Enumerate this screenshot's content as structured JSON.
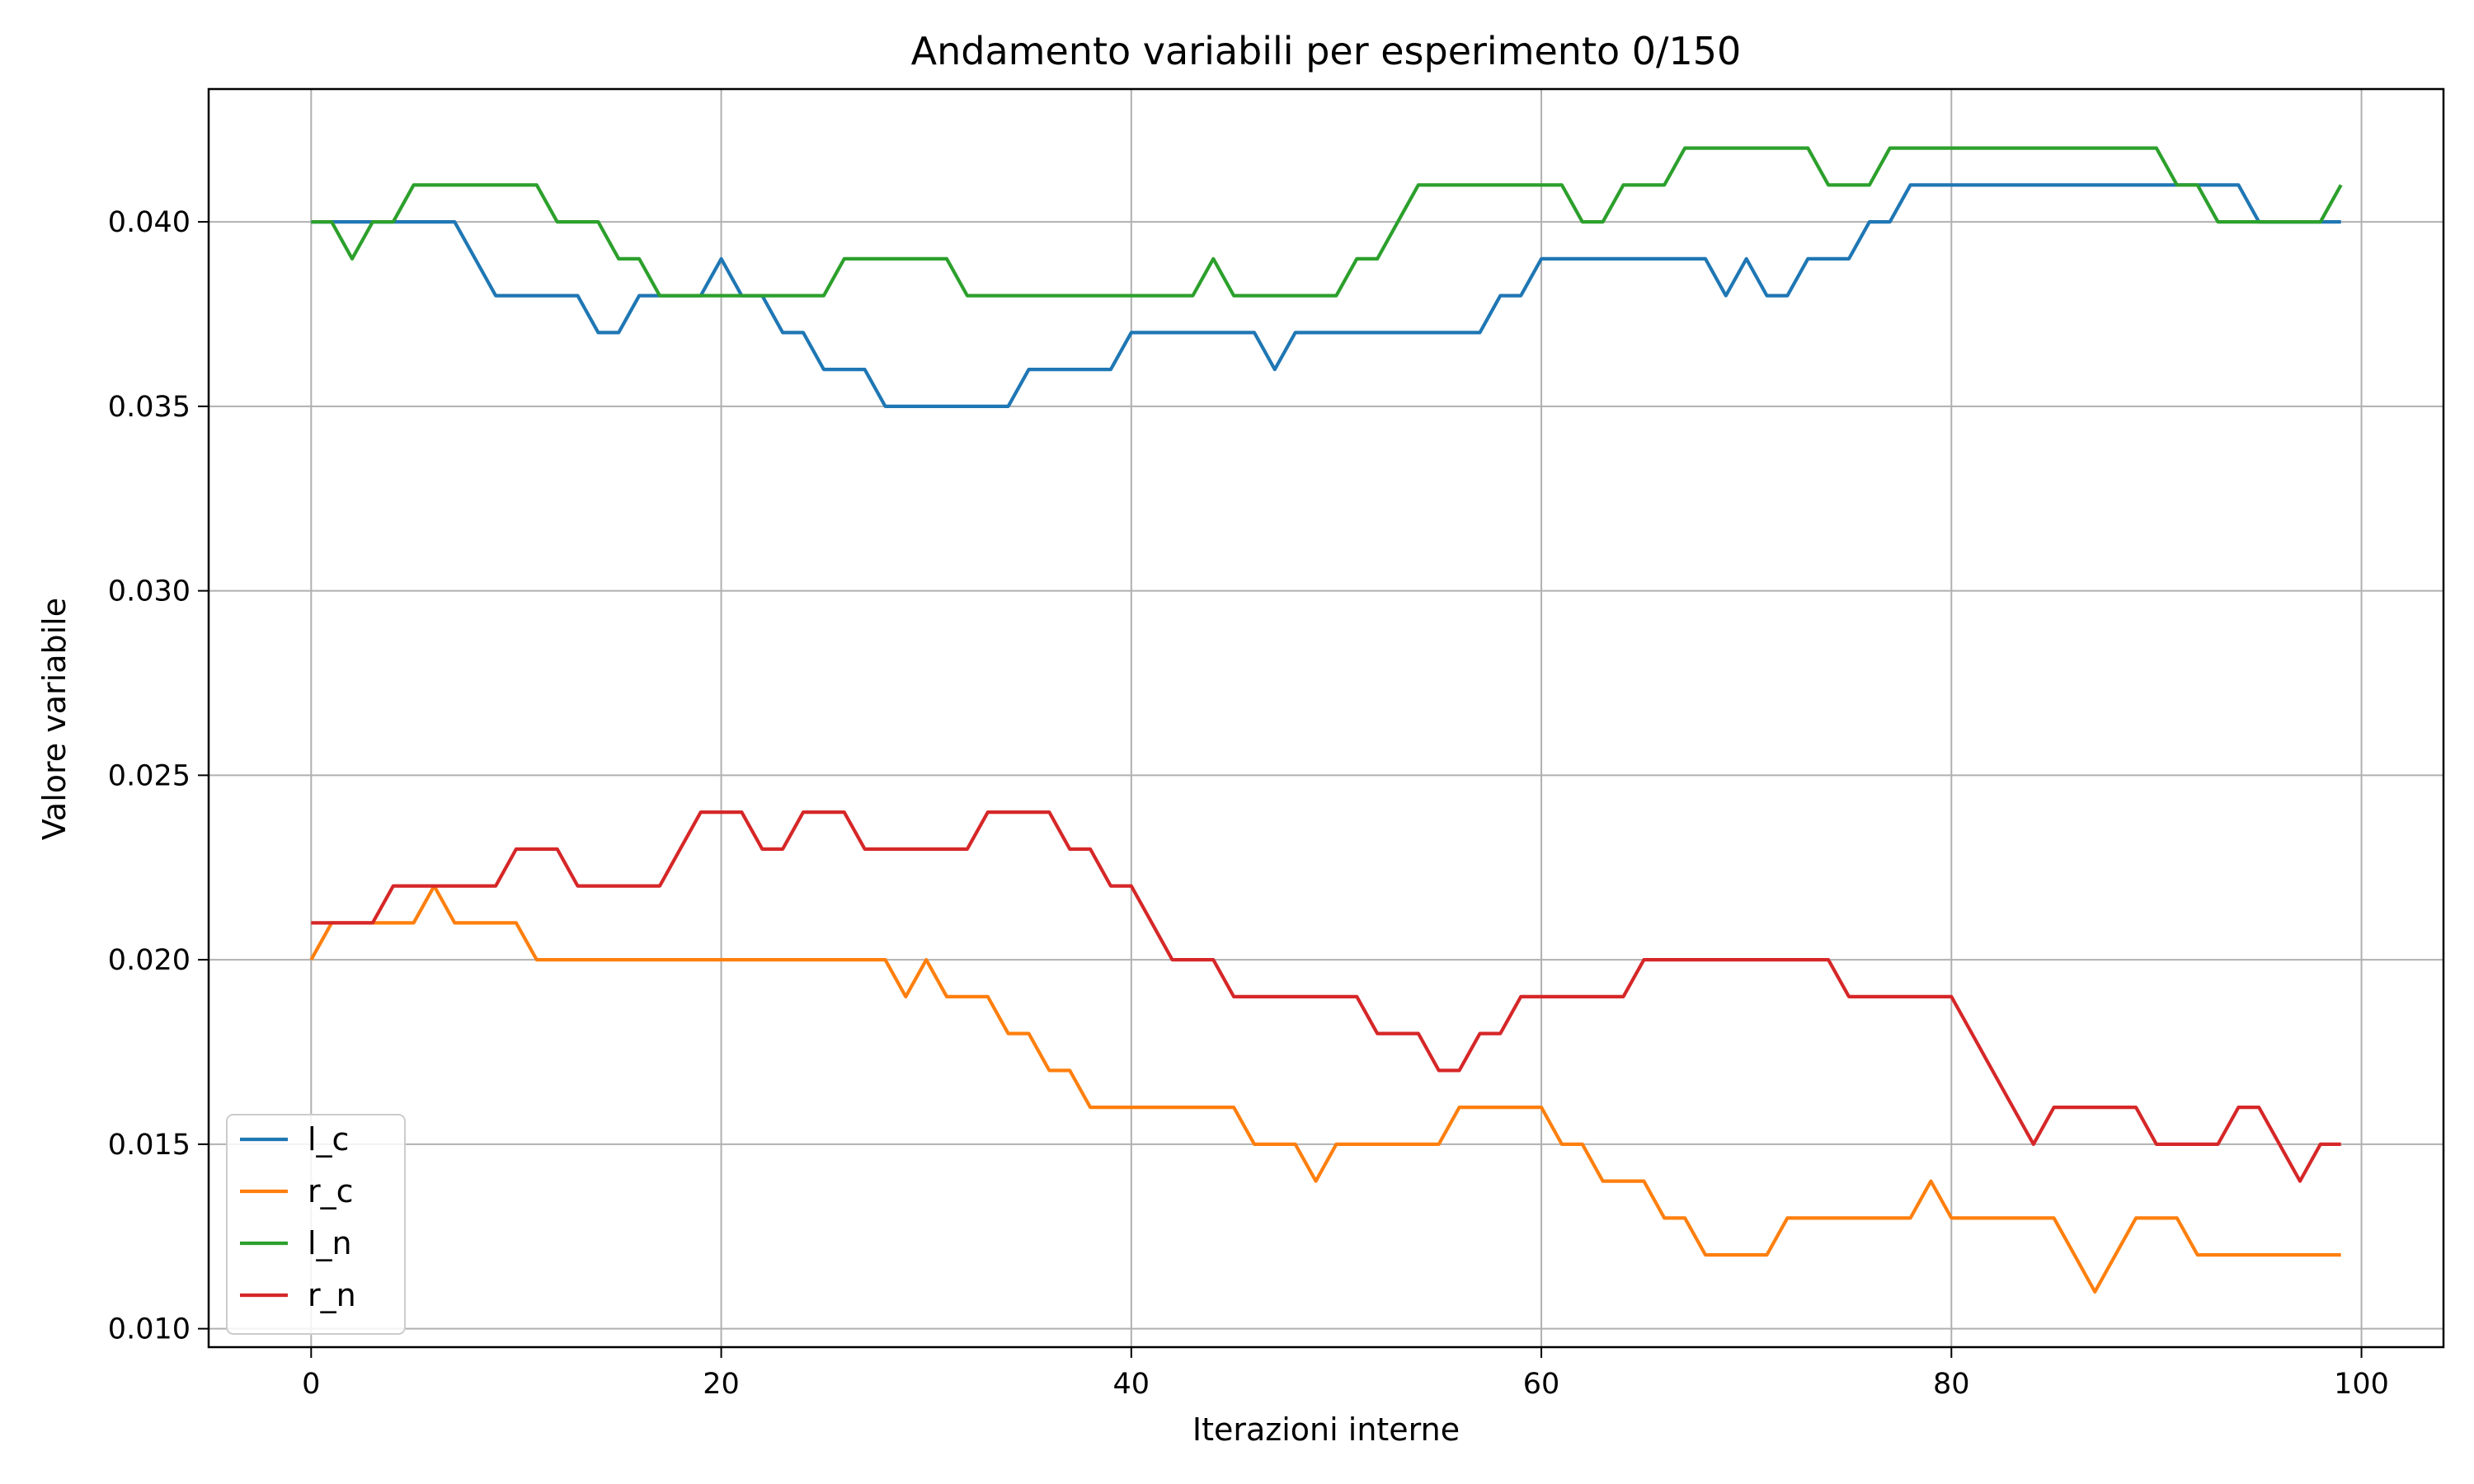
{
  "chart_data": {
    "type": "line",
    "title": "Andamento variabili per esperimento 0/150",
    "xlabel": "Iterazioni interne",
    "ylabel": "Valore variabile",
    "xlim": [
      -5,
      104
    ],
    "ylim": [
      0.0095,
      0.0436
    ],
    "x_ticks": [
      0,
      20,
      40,
      60,
      80,
      100
    ],
    "x_tick_labels": [
      "0",
      "20",
      "40",
      "60",
      "80",
      "100"
    ],
    "y_ticks": [
      0.01,
      0.015,
      0.02,
      0.025,
      0.03,
      0.035,
      0.04
    ],
    "y_tick_labels": [
      "0.010",
      "0.015",
      "0.020",
      "0.025",
      "0.030",
      "0.035",
      "0.040"
    ],
    "grid": true,
    "legend_position": "bottom-left",
    "series": [
      {
        "name": "l_c",
        "color": "#1f77b4",
        "values": [
          0.04,
          0.04,
          0.04,
          0.04,
          0.04,
          0.04,
          0.04,
          0.04,
          0.039,
          0.038,
          0.038,
          0.038,
          0.038,
          0.038,
          0.037,
          0.037,
          0.038,
          0.038,
          0.038,
          0.038,
          0.039,
          0.038,
          0.038,
          0.037,
          0.037,
          0.036,
          0.036,
          0.036,
          0.035,
          0.035,
          0.035,
          0.035,
          0.035,
          0.035,
          0.035,
          0.036,
          0.036,
          0.036,
          0.036,
          0.036,
          0.037,
          0.037,
          0.037,
          0.037,
          0.037,
          0.037,
          0.037,
          0.036,
          0.037,
          0.037,
          0.037,
          0.037,
          0.037,
          0.037,
          0.037,
          0.037,
          0.037,
          0.037,
          0.038,
          0.038,
          0.039,
          0.039,
          0.039,
          0.039,
          0.039,
          0.039,
          0.039,
          0.039,
          0.039,
          0.038,
          0.039,
          0.038,
          0.038,
          0.039,
          0.039,
          0.039,
          0.04,
          0.04,
          0.041,
          0.041,
          0.041,
          0.041,
          0.041,
          0.041,
          0.041,
          0.041,
          0.041,
          0.041,
          0.041,
          0.041,
          0.041,
          0.041,
          0.041,
          0.041,
          0.041,
          0.04,
          0.04,
          0.04,
          0.04,
          0.04
        ]
      },
      {
        "name": "r_c",
        "color": "#ff7f0e",
        "values": [
          0.02,
          0.021,
          0.021,
          0.021,
          0.021,
          0.021,
          0.022,
          0.021,
          0.021,
          0.021,
          0.021,
          0.02,
          0.02,
          0.02,
          0.02,
          0.02,
          0.02,
          0.02,
          0.02,
          0.02,
          0.02,
          0.02,
          0.02,
          0.02,
          0.02,
          0.02,
          0.02,
          0.02,
          0.02,
          0.019,
          0.02,
          0.019,
          0.019,
          0.019,
          0.018,
          0.018,
          0.017,
          0.017,
          0.016,
          0.016,
          0.016,
          0.016,
          0.016,
          0.016,
          0.016,
          0.016,
          0.015,
          0.015,
          0.015,
          0.014,
          0.015,
          0.015,
          0.015,
          0.015,
          0.015,
          0.015,
          0.016,
          0.016,
          0.016,
          0.016,
          0.016,
          0.015,
          0.015,
          0.014,
          0.014,
          0.014,
          0.013,
          0.013,
          0.012,
          0.012,
          0.012,
          0.012,
          0.013,
          0.013,
          0.013,
          0.013,
          0.013,
          0.013,
          0.013,
          0.014,
          0.013,
          0.013,
          0.013,
          0.013,
          0.013,
          0.013,
          0.012,
          0.011,
          0.012,
          0.013,
          0.013,
          0.013,
          0.012,
          0.012,
          0.012,
          0.012,
          0.012,
          0.012,
          0.012,
          0.012
        ]
      },
      {
        "name": "l_n",
        "color": "#2ca02c",
        "values": [
          0.04,
          0.04,
          0.039,
          0.04,
          0.04,
          0.041,
          0.041,
          0.041,
          0.041,
          0.041,
          0.041,
          0.041,
          0.04,
          0.04,
          0.04,
          0.039,
          0.039,
          0.038,
          0.038,
          0.038,
          0.038,
          0.038,
          0.038,
          0.038,
          0.038,
          0.038,
          0.039,
          0.039,
          0.039,
          0.039,
          0.039,
          0.039,
          0.038,
          0.038,
          0.038,
          0.038,
          0.038,
          0.038,
          0.038,
          0.038,
          0.038,
          0.038,
          0.038,
          0.038,
          0.039,
          0.038,
          0.038,
          0.038,
          0.038,
          0.038,
          0.038,
          0.039,
          0.039,
          0.04,
          0.041,
          0.041,
          0.041,
          0.041,
          0.041,
          0.041,
          0.041,
          0.041,
          0.04,
          0.04,
          0.041,
          0.041,
          0.041,
          0.042,
          0.042,
          0.042,
          0.042,
          0.042,
          0.042,
          0.042,
          0.041,
          0.041,
          0.041,
          0.042,
          0.042,
          0.042,
          0.042,
          0.042,
          0.042,
          0.042,
          0.042,
          0.042,
          0.042,
          0.042,
          0.042,
          0.042,
          0.042,
          0.041,
          0.041,
          0.04,
          0.04,
          0.04,
          0.04,
          0.04,
          0.04,
          0.041
        ]
      },
      {
        "name": "r_n",
        "color": "#d62728",
        "values": [
          0.021,
          0.021,
          0.021,
          0.021,
          0.022,
          0.022,
          0.022,
          0.022,
          0.022,
          0.022,
          0.023,
          0.023,
          0.023,
          0.022,
          0.022,
          0.022,
          0.022,
          0.022,
          0.023,
          0.024,
          0.024,
          0.024,
          0.023,
          0.023,
          0.024,
          0.024,
          0.024,
          0.023,
          0.023,
          0.023,
          0.023,
          0.023,
          0.023,
          0.024,
          0.024,
          0.024,
          0.024,
          0.023,
          0.023,
          0.022,
          0.022,
          0.021,
          0.02,
          0.02,
          0.02,
          0.019,
          0.019,
          0.019,
          0.019,
          0.019,
          0.019,
          0.019,
          0.018,
          0.018,
          0.018,
          0.017,
          0.017,
          0.018,
          0.018,
          0.019,
          0.019,
          0.019,
          0.019,
          0.019,
          0.019,
          0.02,
          0.02,
          0.02,
          0.02,
          0.02,
          0.02,
          0.02,
          0.02,
          0.02,
          0.02,
          0.019,
          0.019,
          0.019,
          0.019,
          0.019,
          0.019,
          0.018,
          0.017,
          0.016,
          0.015,
          0.016,
          0.016,
          0.016,
          0.016,
          0.016,
          0.015,
          0.015,
          0.015,
          0.015,
          0.016,
          0.016,
          0.015,
          0.014,
          0.015,
          0.015
        ]
      }
    ]
  }
}
